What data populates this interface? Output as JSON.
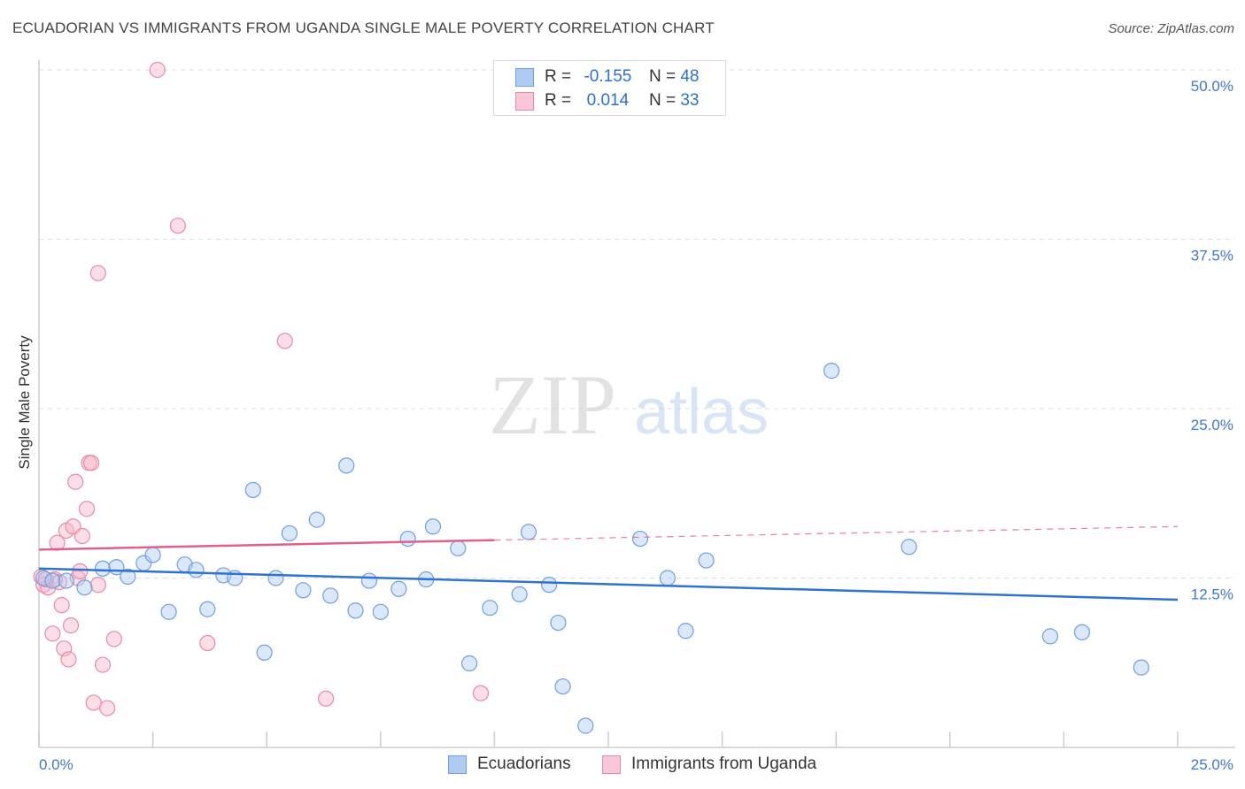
{
  "title": "ECUADORIAN VS IMMIGRANTS FROM UGANDA SINGLE MALE POVERTY CORRELATION CHART",
  "source": "Source: ZipAtlas.com",
  "watermark": {
    "zip": "ZIP",
    "atlas": "atlas"
  },
  "legend": {
    "rows": [
      {
        "r_label": "R =",
        "r_value": "-0.155",
        "n_label": "N =",
        "n_value": "48"
      },
      {
        "r_label": "R =",
        "r_value": "0.014",
        "n_label": "N =",
        "n_value": "33"
      }
    ]
  },
  "bottom_legend": {
    "ecuadorians": "Ecuadorians",
    "uganda": "Immigrants from Uganda"
  },
  "colors": {
    "blue_fill": "#aecbf2",
    "blue_stroke": "#6f9fe0",
    "blue_line": "#2f72d0",
    "pink_fill": "#f6b6c8",
    "pink_stroke": "#e98aa8",
    "pink_line": "#e0608a",
    "tick": "#3f78c8"
  },
  "chart_data": {
    "type": "scatter",
    "title": "ECUADORIAN VS IMMIGRANTS FROM UGANDA SINGLE MALE POVERTY CORRELATION CHART",
    "xlabel": "",
    "ylabel": "Single Male Poverty",
    "xlim": [
      0,
      25
    ],
    "ylim": [
      0,
      50
    ],
    "x_tick_labels": [
      "0.0%",
      "25.0%"
    ],
    "y_ticks": [
      12.5,
      25.0,
      37.5,
      50.0
    ],
    "y_tick_labels": [
      "12.5%",
      "25.0%",
      "37.5%",
      "50.0%"
    ],
    "series": [
      {
        "name": "Ecuadorians",
        "points": [
          [
            0.1,
            12.5
          ],
          [
            0.3,
            12.3
          ],
          [
            0.6,
            12.3
          ],
          [
            1.0,
            11.8
          ],
          [
            1.4,
            13.2
          ],
          [
            1.7,
            13.3
          ],
          [
            1.95,
            12.6
          ],
          [
            2.3,
            13.6
          ],
          [
            2.5,
            14.2
          ],
          [
            2.85,
            10.0
          ],
          [
            3.2,
            13.5
          ],
          [
            3.45,
            13.1
          ],
          [
            3.7,
            10.2
          ],
          [
            4.05,
            12.7
          ],
          [
            4.3,
            12.5
          ],
          [
            4.7,
            19.0
          ],
          [
            4.95,
            7.0
          ],
          [
            5.2,
            12.5
          ],
          [
            5.5,
            15.8
          ],
          [
            5.8,
            11.6
          ],
          [
            6.1,
            16.8
          ],
          [
            6.4,
            11.2
          ],
          [
            6.75,
            20.8
          ],
          [
            6.95,
            10.1
          ],
          [
            7.25,
            12.3
          ],
          [
            7.5,
            10.0
          ],
          [
            7.9,
            11.7
          ],
          [
            8.1,
            15.4
          ],
          [
            8.5,
            12.4
          ],
          [
            8.65,
            16.3
          ],
          [
            9.2,
            14.7
          ],
          [
            9.45,
            6.2
          ],
          [
            9.9,
            10.3
          ],
          [
            10.55,
            11.3
          ],
          [
            10.75,
            15.9
          ],
          [
            11.2,
            12.0
          ],
          [
            11.4,
            9.2
          ],
          [
            11.5,
            4.5
          ],
          [
            12.0,
            1.6
          ],
          [
            13.2,
            15.4
          ],
          [
            13.8,
            12.5
          ],
          [
            14.2,
            8.6
          ],
          [
            14.65,
            13.8
          ],
          [
            17.4,
            27.8
          ],
          [
            19.1,
            14.8
          ],
          [
            22.2,
            8.2
          ],
          [
            22.9,
            8.5
          ],
          [
            24.2,
            5.9
          ]
        ],
        "trend": {
          "x": [
            0,
            25
          ],
          "y": [
            13.2,
            10.9
          ]
        }
      },
      {
        "name": "Immigrants from Uganda",
        "points": [
          [
            0.05,
            12.6
          ],
          [
            0.1,
            12.0
          ],
          [
            0.2,
            11.8
          ],
          [
            0.3,
            8.4
          ],
          [
            0.35,
            12.4
          ],
          [
            0.45,
            12.2
          ],
          [
            0.4,
            15.1
          ],
          [
            0.5,
            10.5
          ],
          [
            0.55,
            7.3
          ],
          [
            0.6,
            16.0
          ],
          [
            0.65,
            6.5
          ],
          [
            0.7,
            9.0
          ],
          [
            0.75,
            16.3
          ],
          [
            0.8,
            19.6
          ],
          [
            0.85,
            12.5
          ],
          [
            0.9,
            13.0
          ],
          [
            0.95,
            15.6
          ],
          [
            1.05,
            17.6
          ],
          [
            1.1,
            21.0
          ],
          [
            1.15,
            21.0
          ],
          [
            1.2,
            3.3
          ],
          [
            1.3,
            12.0
          ],
          [
            1.3,
            35.0
          ],
          [
            1.4,
            6.1
          ],
          [
            1.5,
            2.9
          ],
          [
            1.65,
            8.0
          ],
          [
            2.6,
            50.0
          ],
          [
            3.05,
            38.5
          ],
          [
            3.7,
            7.7
          ],
          [
            5.4,
            30.0
          ],
          [
            6.3,
            3.6
          ],
          [
            9.7,
            4.0
          ],
          [
            0.15,
            12.4
          ]
        ],
        "trend": {
          "x": [
            0,
            10.0
          ],
          "y": [
            14.6,
            15.3
          ]
        },
        "trend_dashed": {
          "x": [
            10.0,
            25
          ],
          "y": [
            15.3,
            16.3
          ]
        }
      }
    ]
  }
}
